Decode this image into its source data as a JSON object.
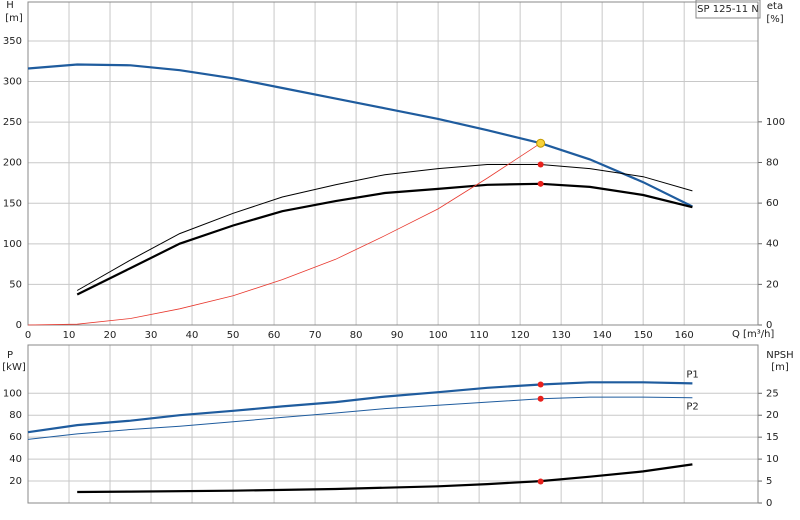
{
  "chart_data": [
    {
      "type": "line",
      "title": "SP 125-11 N",
      "x_label": "Q [m³/h]",
      "y_label": "H",
      "y_unit": "[m]",
      "y2_label": "eta",
      "y2_unit": "[%]",
      "xlim": [
        0,
        178
      ],
      "xticks": [
        0,
        10,
        20,
        30,
        40,
        50,
        60,
        70,
        80,
        90,
        100,
        110,
        120,
        130,
        140,
        150,
        160
      ],
      "ylim": [
        0,
        398
      ],
      "yticks": [
        0,
        50,
        100,
        150,
        200,
        250,
        300,
        350
      ],
      "y2lim": [
        0,
        159
      ],
      "y2ticks": [
        0,
        20,
        40,
        60,
        80,
        100
      ],
      "grid": true,
      "series": [
        {
          "color": "#1f5c9e",
          "line_width": 2.2,
          "x": [
            0,
            12,
            25,
            37,
            50,
            62,
            75,
            87,
            100,
            112,
            125,
            137,
            150,
            162
          ],
          "values": [
            316,
            321,
            320,
            314,
            304,
            292,
            279,
            267,
            254,
            240,
            224,
            204,
            176,
            146
          ]
        },
        {
          "color": "#000000",
          "line_width": 1,
          "axis": "y2",
          "x": [
            12,
            25,
            37,
            50,
            62,
            75,
            87,
            100,
            112,
            125,
            137,
            150,
            162
          ],
          "values": [
            17,
            32,
            45,
            55,
            63,
            69,
            74,
            77,
            79,
            79,
            77,
            73,
            66
          ]
        },
        {
          "color": "#000000",
          "line_width": 2.2,
          "axis": "y2",
          "x": [
            12,
            25,
            37,
            50,
            62,
            75,
            87,
            100,
            112,
            125,
            137,
            150,
            162
          ],
          "values": [
            15,
            28,
            40,
            49,
            56,
            61,
            65,
            67,
            69,
            69.5,
            68,
            64,
            58
          ]
        },
        {
          "color": "#e8392f",
          "line_width": 0.8,
          "x": [
            0,
            12,
            25,
            37,
            50,
            62,
            75,
            87,
            100,
            112,
            125
          ],
          "values": [
            0,
            1,
            8,
            20,
            36,
            56,
            81,
            110,
            143,
            181,
            224
          ]
        }
      ],
      "points": [
        {
          "x": 125,
          "y": 224,
          "axis": "y",
          "color": "#f7d23a"
        },
        {
          "x": 125,
          "y": 79,
          "axis": "y2",
          "color": "#e8201c"
        },
        {
          "x": 125,
          "y": 69.5,
          "axis": "y2",
          "color": "#e8201c"
        }
      ]
    },
    {
      "type": "line",
      "y_label": "P",
      "y_unit": "[kW]",
      "y2_label": "NPSH",
      "y2_unit": "[m]",
      "xlim": [
        0,
        178
      ],
      "ylim": [
        0,
        144
      ],
      "yticks": [
        20,
        40,
        60,
        80,
        100
      ],
      "y2lim": [
        0,
        36
      ],
      "y2ticks": [
        0,
        5,
        10,
        15,
        20,
        25
      ],
      "grid": true,
      "series": [
        {
          "name": "P1",
          "color": "#1f5c9e",
          "line_width": 2.2,
          "x": [
            0,
            12,
            25,
            37,
            50,
            62,
            75,
            87,
            100,
            112,
            125,
            137,
            150,
            162
          ],
          "values": [
            64.5,
            71,
            75,
            80,
            84,
            88,
            92,
            97,
            101,
            105,
            108,
            110,
            110,
            109
          ]
        },
        {
          "name": "P2",
          "color": "#1f5c9e",
          "line_width": 1,
          "x": [
            0,
            12,
            25,
            37,
            50,
            62,
            75,
            87,
            100,
            112,
            125,
            137,
            150,
            162
          ],
          "values": [
            58,
            63,
            67,
            70,
            74,
            78,
            82,
            86,
            89,
            92,
            95,
            96.5,
            96.5,
            96
          ]
        },
        {
          "color": "#000000",
          "line_width": 2.2,
          "axis": "y2",
          "x": [
            12,
            25,
            50,
            75,
            100,
            112,
            125,
            137,
            150,
            162
          ],
          "values": [
            2.5,
            2.6,
            2.8,
            3.2,
            3.8,
            4.3,
            5,
            6,
            7.2,
            8.8
          ]
        }
      ],
      "points": [
        {
          "x": 125,
          "y": 108,
          "axis": "y",
          "color": "#e8201c"
        },
        {
          "x": 125,
          "y": 95,
          "axis": "y",
          "color": "#e8201c"
        },
        {
          "x": 125,
          "y": 4.9,
          "axis": "y2",
          "color": "#e8201c"
        }
      ]
    }
  ]
}
